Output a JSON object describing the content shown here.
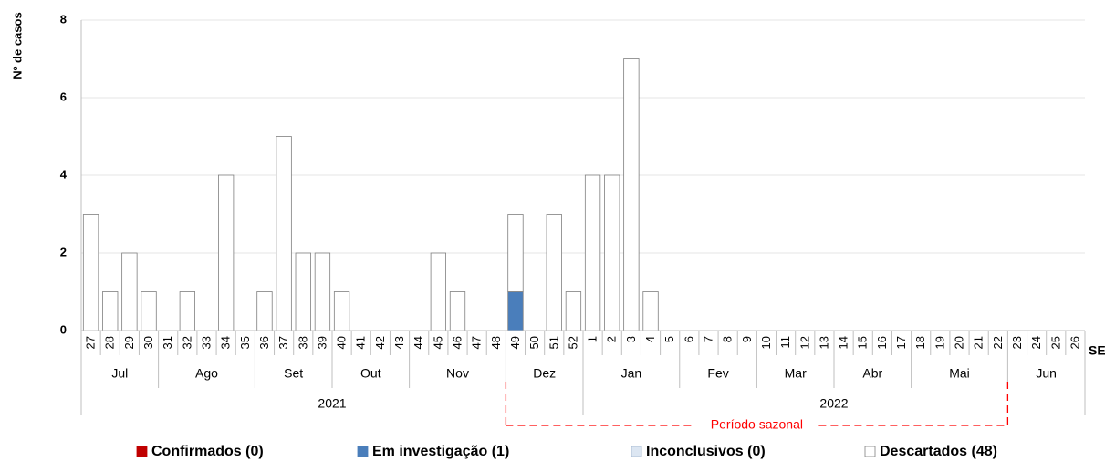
{
  "chart_data": {
    "type": "bar",
    "stacked": true,
    "ylabel": "Nº de casos",
    "xlabel": "SE",
    "ylim": [
      0,
      8
    ],
    "yticks": [
      0,
      2,
      4,
      6,
      8
    ],
    "grid": true,
    "legend_position": "bottom",
    "categories": [
      "27",
      "28",
      "29",
      "30",
      "31",
      "32",
      "33",
      "34",
      "35",
      "36",
      "37",
      "38",
      "39",
      "40",
      "41",
      "42",
      "43",
      "44",
      "45",
      "46",
      "47",
      "48",
      "49",
      "50",
      "51",
      "52",
      "1",
      "2",
      "3",
      "4",
      "5",
      "6",
      "7",
      "8",
      "9",
      "10",
      "11",
      "12",
      "13",
      "14",
      "15",
      "16",
      "17",
      "18",
      "19",
      "20",
      "21",
      "22",
      "23",
      "24",
      "25",
      "26"
    ],
    "series": [
      {
        "name": "Confirmados (0)",
        "color": "#c00000",
        "values": [
          0,
          0,
          0,
          0,
          0,
          0,
          0,
          0,
          0,
          0,
          0,
          0,
          0,
          0,
          0,
          0,
          0,
          0,
          0,
          0,
          0,
          0,
          0,
          0,
          0,
          0,
          0,
          0,
          0,
          0,
          0,
          0,
          0,
          0,
          0,
          0,
          0,
          0,
          0,
          0,
          0,
          0,
          0,
          0,
          0,
          0,
          0,
          0,
          0,
          0,
          0,
          0
        ]
      },
      {
        "name": "Em investigação (1)",
        "color": "#4a7ebb",
        "values": [
          0,
          0,
          0,
          0,
          0,
          0,
          0,
          0,
          0,
          0,
          0,
          0,
          0,
          0,
          0,
          0,
          0,
          0,
          0,
          0,
          0,
          0,
          1,
          0,
          0,
          0,
          0,
          0,
          0,
          0,
          0,
          0,
          0,
          0,
          0,
          0,
          0,
          0,
          0,
          0,
          0,
          0,
          0,
          0,
          0,
          0,
          0,
          0,
          0,
          0,
          0,
          0
        ]
      },
      {
        "name": "Inconclusivos (0)",
        "color": "#dce6f2",
        "values": [
          0,
          0,
          0,
          0,
          0,
          0,
          0,
          0,
          0,
          0,
          0,
          0,
          0,
          0,
          0,
          0,
          0,
          0,
          0,
          0,
          0,
          0,
          0,
          0,
          0,
          0,
          0,
          0,
          0,
          0,
          0,
          0,
          0,
          0,
          0,
          0,
          0,
          0,
          0,
          0,
          0,
          0,
          0,
          0,
          0,
          0,
          0,
          0,
          0,
          0,
          0,
          0
        ]
      },
      {
        "name": "Descartados (48)",
        "color": "#ffffff",
        "values": [
          3,
          1,
          2,
          1,
          0,
          1,
          0,
          4,
          0,
          1,
          5,
          2,
          2,
          1,
          0,
          0,
          0,
          0,
          2,
          1,
          0,
          0,
          2,
          0,
          3,
          1,
          4,
          4,
          7,
          1,
          0,
          0,
          0,
          0,
          0,
          0,
          0,
          0,
          0,
          0,
          0,
          0,
          0,
          0,
          0,
          0,
          0,
          0,
          0,
          0,
          0,
          0
        ]
      }
    ],
    "months": [
      {
        "label": "Jul",
        "weeks": 4
      },
      {
        "label": "Ago",
        "weeks": 5
      },
      {
        "label": "Set",
        "weeks": 4
      },
      {
        "label": "Out",
        "weeks": 4
      },
      {
        "label": "Nov",
        "weeks": 5
      },
      {
        "label": "Dez",
        "weeks": 4
      },
      {
        "label": "Jan",
        "weeks": 5
      },
      {
        "label": "Fev",
        "weeks": 4
      },
      {
        "label": "Mar",
        "weeks": 4
      },
      {
        "label": "Abr",
        "weeks": 4
      },
      {
        "label": "Mai",
        "weeks": 5
      },
      {
        "label": "Jun",
        "weeks": 4
      }
    ],
    "years": [
      {
        "label": "2021",
        "weeks": 26
      },
      {
        "label": "2022",
        "weeks": 26
      }
    ],
    "annotation": {
      "text": "Período sazonal",
      "color": "#ff0000",
      "from_week": "49",
      "to_week": "22"
    }
  }
}
